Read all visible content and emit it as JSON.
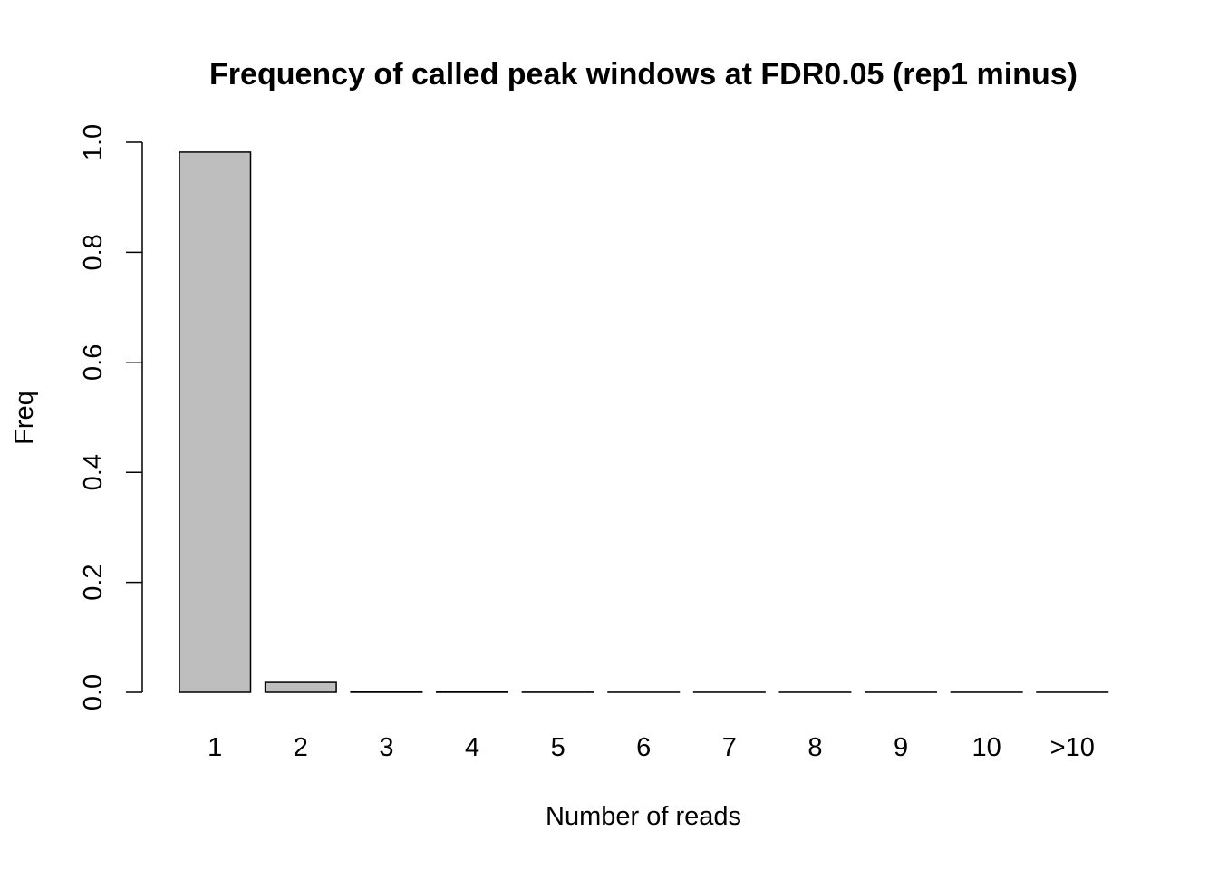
{
  "chart_data": {
    "type": "bar",
    "title": "Frequency of called peak windows at FDR0.05 (rep1 minus)",
    "xlabel": "Number of reads",
    "ylabel": "Freq",
    "categories": [
      "1",
      "2",
      "3",
      "4",
      "5",
      "6",
      "7",
      "8",
      "9",
      "10",
      ">10"
    ],
    "values": [
      0.982,
      0.018,
      0.002,
      0.0005,
      0.0002,
      0.0001,
      0.0001,
      0.0001,
      0.0001,
      0.0001,
      0.0001
    ],
    "ylim": [
      0,
      1.0
    ],
    "yticks": [
      "0.0",
      "0.2",
      "0.4",
      "0.6",
      "0.8",
      "1.0"
    ],
    "grid": false,
    "legend": "none",
    "bar_color": "#bebebe",
    "bar_border_color": "#000000"
  }
}
